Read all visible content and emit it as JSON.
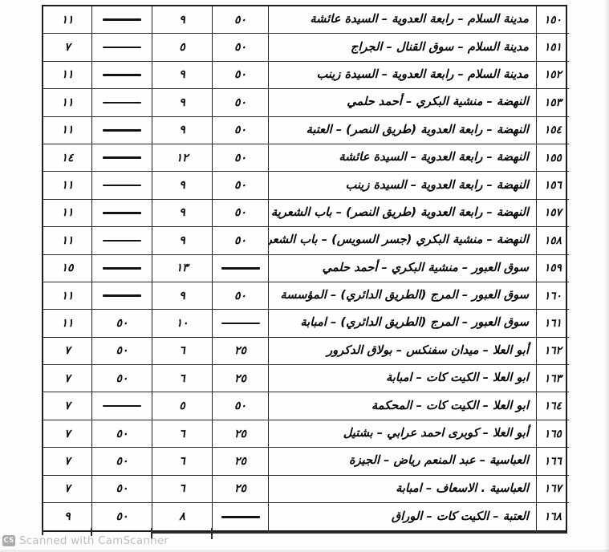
{
  "table": {
    "rows": [
      {
        "id": "١٥٠",
        "cols": [
          "١١",
          "—",
          "٩",
          "٥٠"
        ],
        "route": "مدينة السلام – رابعة العدوية – السيدة عائشة"
      },
      {
        "id": "١٥١",
        "cols": [
          "٧",
          "—",
          "٥",
          "٥٠"
        ],
        "route": "مدينة السلام – سوق القنال – الجراج"
      },
      {
        "id": "١٥٢",
        "cols": [
          "١١",
          "—",
          "٩",
          "٥٠"
        ],
        "route": "مدينة السلام – رابعة العدوية – السيدة زينب"
      },
      {
        "id": "١٥٣",
        "cols": [
          "١١",
          "—",
          "٩",
          "٥٠"
        ],
        "route": "النهضة – منشية البكري – أحمد حلمي"
      },
      {
        "id": "١٥٤",
        "cols": [
          "١١",
          "—",
          "٩",
          "٥٠"
        ],
        "route": "النهضة – رابعة العدوية (طريق النصر) – العتبة"
      },
      {
        "id": "١٥٥",
        "cols": [
          "١٤",
          "—",
          "١٢",
          "٥٠"
        ],
        "route": "النهضة – رابعة العدوية – السيدة عائشة"
      },
      {
        "id": "١٥٦",
        "cols": [
          "١١",
          "—",
          "٩",
          "٥٠"
        ],
        "route": "النهضة – رابعة العدوية – السيدة زينب"
      },
      {
        "id": "١٥٧",
        "cols": [
          "١١",
          "—",
          "٩",
          "٥٠"
        ],
        "route": "النهضة – رابعة العدوية (طريق النصر) – باب الشعرية"
      },
      {
        "id": "١٥٨",
        "cols": [
          "١١",
          "—",
          "٩",
          "٥٠"
        ],
        "route": "النهضة – منشية البكري (جسر السويس) – باب الشعرية"
      },
      {
        "id": "١٥٩",
        "cols": [
          "١٥",
          "—",
          "١٣",
          "—"
        ],
        "route": "سوق العبور – منشية البكري – أحمد حلمي"
      },
      {
        "id": "١٦٠",
        "cols": [
          "١١",
          "—",
          "٩",
          "٥٠"
        ],
        "route": "سوق العبور – المرج (الطريق الدائري) – المؤسسة"
      },
      {
        "id": "١٦١",
        "cols": [
          "١١",
          "٥٠",
          "١٠",
          "—"
        ],
        "route": "سوق العبور – المرج (الطريق الدائري) – امبابة"
      },
      {
        "id": "١٦٢",
        "cols": [
          "٧",
          "٥٠",
          "٦",
          "٢٥"
        ],
        "route": "أبو العلا – ميدان سفنكس – بولاق الدكرور"
      },
      {
        "id": "١٦٣",
        "cols": [
          "٧",
          "٥٠",
          "٦",
          "٢٥"
        ],
        "route": "ابو العلا – الكيت كات – امبابة"
      },
      {
        "id": "١٦٤",
        "cols": [
          "٧",
          "—",
          "٥",
          "٥٠"
        ],
        "route": "ابو العلا – الكيت كات – المحكمة"
      },
      {
        "id": "١٦٥",
        "cols": [
          "٧",
          "٥٠",
          "٦",
          "٢٥"
        ],
        "route": "أبو العلا – كوبرى احمد عرابي – بشتيل"
      },
      {
        "id": "١٦٦",
        "cols": [
          "٧",
          "٥٠",
          "٦",
          "٢٥"
        ],
        "route": "العباسية – عبد المنعم رياض – الجيزة"
      },
      {
        "id": "١٦٧",
        "cols": [
          "٧",
          "٥٠",
          "٦",
          "٢٥"
        ],
        "route": "العباسية . الاسعاف – امبابة"
      },
      {
        "id": "١٦٨",
        "cols": [
          "٩",
          "٥٠",
          "٨",
          "—"
        ],
        "route": "العتبة – الكيت كات – الوراق"
      }
    ]
  },
  "watermark": {
    "logo": "CS",
    "text": "Scanned with CamScanner"
  },
  "colors": {
    "line": "#1e1e1e",
    "text": "#050505",
    "watermark_text": "#bdbdbd",
    "watermark_badge": "#ababab",
    "paper": "#fdfdfb"
  }
}
